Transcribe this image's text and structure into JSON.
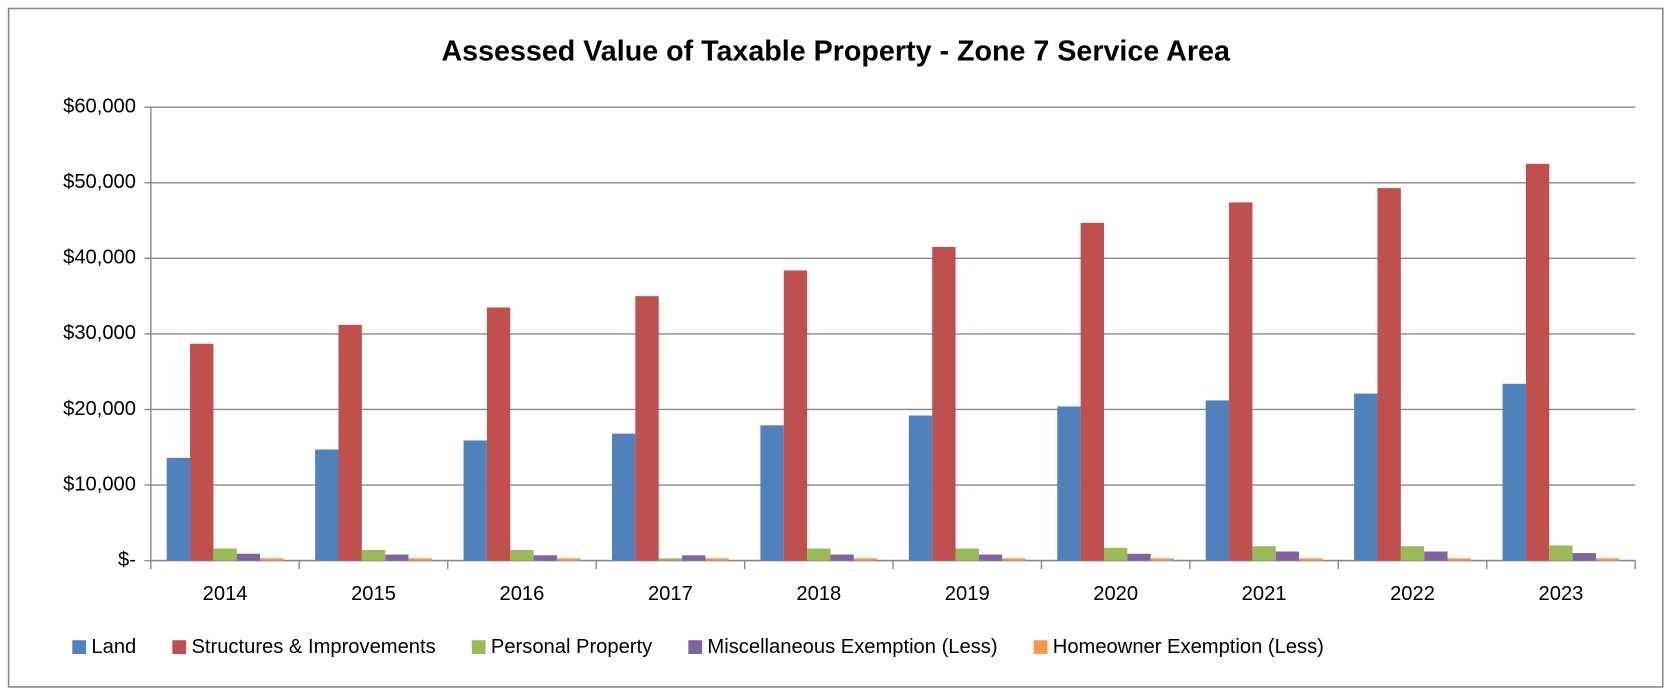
{
  "chart_data": {
    "type": "bar",
    "title": "Assessed Value of Taxable Property - Zone 7 Service Area",
    "categories": [
      "2014",
      "2015",
      "2016",
      "2017",
      "2018",
      "2019",
      "2020",
      "2021",
      "2022",
      "2023"
    ],
    "series": [
      {
        "name": "Land",
        "color": "#4f81bd",
        "values": [
          13600,
          14700,
          15900,
          16800,
          17900,
          19200,
          20400,
          21200,
          22100,
          23400
        ]
      },
      {
        "name": "Structures & Improvements",
        "color": "#c0504d",
        "values": [
          28700,
          31200,
          33500,
          35000,
          38400,
          41500,
          44700,
          47400,
          49300,
          52500
        ]
      },
      {
        "name": "Personal Property",
        "color": "#9bbb59",
        "values": [
          1600,
          1400,
          1400,
          300,
          1600,
          1600,
          1700,
          1900,
          1900,
          2000
        ]
      },
      {
        "name": "Miscellaneous Exemption (Less)",
        "color": "#8064a2",
        "values": [
          900,
          800,
          700,
          700,
          800,
          800,
          900,
          1200,
          1200,
          1000
        ]
      },
      {
        "name": "Homeowner Exemption (Less)",
        "color": "#f79646",
        "values": [
          300,
          300,
          300,
          300,
          300,
          300,
          300,
          300,
          300,
          300
        ]
      }
    ],
    "ylim": [
      0,
      60000
    ],
    "yticks": [
      {
        "value": 0,
        "label": "$-"
      },
      {
        "value": 10000,
        "label": "$10,000"
      },
      {
        "value": 20000,
        "label": "$20,000"
      },
      {
        "value": 30000,
        "label": "$30,000"
      },
      {
        "value": 40000,
        "label": "$40,000"
      },
      {
        "value": 50000,
        "label": "$50,000"
      },
      {
        "value": 60000,
        "label": "$60,000"
      }
    ],
    "grid": true,
    "legend": "bottom"
  }
}
